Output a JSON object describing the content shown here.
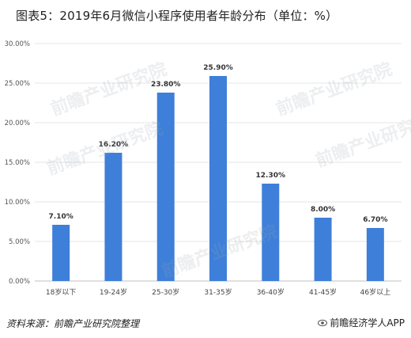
{
  "title": "图表5：2019年6月微信小程序使用者年龄分布（单位：%）",
  "footer": {
    "source": "资料来源：前瞻产业研究院整理",
    "brand": "前瞻经济学人APP",
    "brand_icon": "eye-logo-icon"
  },
  "watermark": "前瞻产业研究院",
  "colors": {
    "bar": "#3e7fd9",
    "grid": "#e4e4e4",
    "axis": "#bfbfbf"
  },
  "chart_data": {
    "type": "bar",
    "title": "图表5：2019年6月微信小程序使用者年龄分布（单位：%）",
    "xlabel": "",
    "ylabel": "",
    "ylim": [
      0,
      30
    ],
    "yticks": [
      "0.00%",
      "5.00%",
      "10.00%",
      "15.00%",
      "20.00%",
      "25.00%",
      "30.00%"
    ],
    "grid": true,
    "categories": [
      "18岁以下",
      "19-24岁",
      "25-30岁",
      "31-35岁",
      "36-40岁",
      "41-45岁",
      "46岁以上"
    ],
    "values": [
      7.1,
      16.2,
      23.8,
      25.9,
      12.3,
      8.0,
      6.7
    ],
    "data_labels": [
      "7.10%",
      "16.20%",
      "23.80%",
      "25.90%",
      "12.30%",
      "8.00%",
      "6.70%"
    ]
  }
}
